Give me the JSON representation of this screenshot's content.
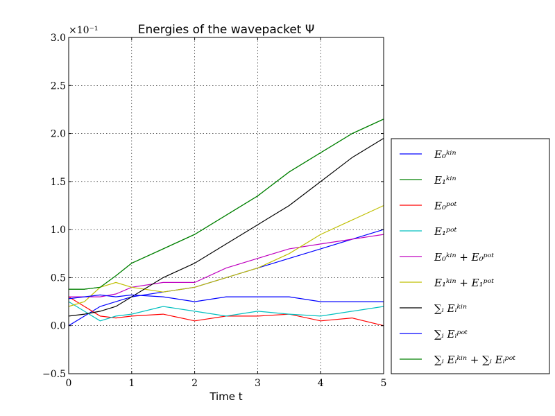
{
  "chart_data": {
    "type": "line",
    "title": "Energies of the wavepacket Ψ",
    "xlabel": "Time t",
    "ylabel": "",
    "xlim": [
      0,
      5
    ],
    "ylim": [
      -0.05,
      0.3
    ],
    "x_ticks": [
      0,
      1,
      2,
      3,
      4,
      5
    ],
    "x_tick_labels": [
      "0",
      "1",
      "2",
      "3",
      "4",
      "5"
    ],
    "y_ticks": [
      -0.05,
      0.0,
      0.05,
      0.1,
      0.15,
      0.2,
      0.25,
      0.3
    ],
    "y_tick_labels": [
      "−0.5",
      "0.0",
      "0.5",
      "1.0",
      "1.5",
      "2.0",
      "2.5",
      "3.0"
    ],
    "y_offset_label": "×10⁻¹",
    "grid": true,
    "legend_position": "outside-right",
    "series": [
      {
        "name": "E0^kin",
        "label": "E₀ᵏⁱⁿ",
        "color": "#0000ff",
        "x": [
          0,
          0.25,
          0.5,
          0.75,
          1.0,
          1.5,
          2.0,
          2.5,
          3.0,
          3.5,
          4.0,
          4.5,
          5.0
        ],
        "y": [
          0.0,
          0.01,
          0.02,
          0.025,
          0.03,
          0.035,
          0.04,
          0.05,
          0.06,
          0.07,
          0.08,
          0.09,
          0.1
        ]
      },
      {
        "name": "E1^kin",
        "label": "E₁ᵏⁱⁿ",
        "color": "#008000",
        "x": [
          0,
          0.25,
          0.5,
          0.75,
          1.0,
          1.5,
          2.0,
          2.5,
          3.0,
          3.5,
          4.0,
          4.5,
          5.0
        ],
        "y": [
          0.038,
          0.038,
          0.04,
          0.052,
          0.065,
          0.08,
          0.095,
          0.115,
          0.135,
          0.16,
          0.18,
          0.2,
          0.215
        ]
      },
      {
        "name": "E0^pot",
        "label": "E₀ᵖᵒᵗ",
        "color": "#ff0000",
        "x": [
          0,
          0.25,
          0.5,
          0.75,
          1.0,
          1.5,
          2.0,
          2.5,
          3.0,
          3.5,
          4.0,
          4.5,
          5.0
        ],
        "y": [
          0.03,
          0.02,
          0.01,
          0.008,
          0.01,
          0.012,
          0.005,
          0.01,
          0.01,
          0.012,
          0.005,
          0.008,
          0.0
        ]
      },
      {
        "name": "E1^pot",
        "label": "E₁ᵖᵒᵗ",
        "color": "#00bfbf",
        "x": [
          0,
          0.25,
          0.5,
          0.75,
          1.0,
          1.5,
          2.0,
          2.5,
          3.0,
          3.5,
          4.0,
          4.5,
          5.0
        ],
        "y": [
          0.025,
          0.015,
          0.005,
          0.01,
          0.012,
          0.02,
          0.015,
          0.01,
          0.015,
          0.012,
          0.01,
          0.015,
          0.02
        ]
      },
      {
        "name": "E0^kin + E0^pot",
        "label": "E₀ᵏⁱⁿ + E₀ᵖᵒᵗ",
        "color": "#bf00bf",
        "x": [
          0,
          0.25,
          0.5,
          0.75,
          1.0,
          1.5,
          2.0,
          2.5,
          3.0,
          3.5,
          4.0,
          4.5,
          5.0
        ],
        "y": [
          0.03,
          0.03,
          0.03,
          0.033,
          0.04,
          0.045,
          0.045,
          0.06,
          0.07,
          0.08,
          0.085,
          0.09,
          0.095
        ]
      },
      {
        "name": "E1^kin + E1^pot",
        "label": "E₁ᵏⁱⁿ + E₁ᵖᵒᵗ",
        "color": "#bfbf00",
        "x": [
          0,
          0.25,
          0.5,
          0.75,
          1.0,
          1.5,
          2.0,
          2.5,
          3.0,
          3.5,
          4.0,
          4.5,
          5.0
        ],
        "y": [
          0.02,
          0.025,
          0.04,
          0.045,
          0.04,
          0.035,
          0.04,
          0.05,
          0.06,
          0.075,
          0.095,
          0.11,
          0.125
        ]
      },
      {
        "name": "Σ_i E_i^kin",
        "label": "∑ᵢ Eᵢᵏⁱⁿ",
        "color": "#000000",
        "x": [
          0,
          0.25,
          0.5,
          0.75,
          1.0,
          1.5,
          2.0,
          2.5,
          3.0,
          3.5,
          4.0,
          4.5,
          5.0
        ],
        "y": [
          0.01,
          0.012,
          0.015,
          0.02,
          0.03,
          0.05,
          0.065,
          0.085,
          0.105,
          0.125,
          0.15,
          0.175,
          0.195
        ]
      },
      {
        "name": "Σ_i E_i^pot",
        "label": "∑ᵢ Eᵢᵖᵒᵗ",
        "color": "#0000ff",
        "x": [
          0,
          0.25,
          0.5,
          0.75,
          1.0,
          1.5,
          2.0,
          2.5,
          3.0,
          3.5,
          4.0,
          4.5,
          5.0
        ],
        "y": [
          0.028,
          0.03,
          0.032,
          0.03,
          0.032,
          0.03,
          0.025,
          0.03,
          0.03,
          0.03,
          0.025,
          0.025,
          0.025
        ]
      },
      {
        "name": "Σ_i E_i^kin + Σ_i E_i^pot",
        "label": "∑ᵢ Eᵢᵏⁱⁿ + ∑ᵢ Eᵢᵖᵒᵗ",
        "color": "#008000",
        "x": [
          0,
          0.25,
          0.5,
          0.75,
          1.0,
          1.5,
          2.0,
          2.5,
          3.0,
          3.5,
          4.0,
          4.5,
          5.0
        ],
        "y": [
          0.038,
          0.038,
          0.04,
          0.052,
          0.065,
          0.08,
          0.095,
          0.115,
          0.135,
          0.16,
          0.18,
          0.2,
          0.215
        ]
      }
    ]
  }
}
